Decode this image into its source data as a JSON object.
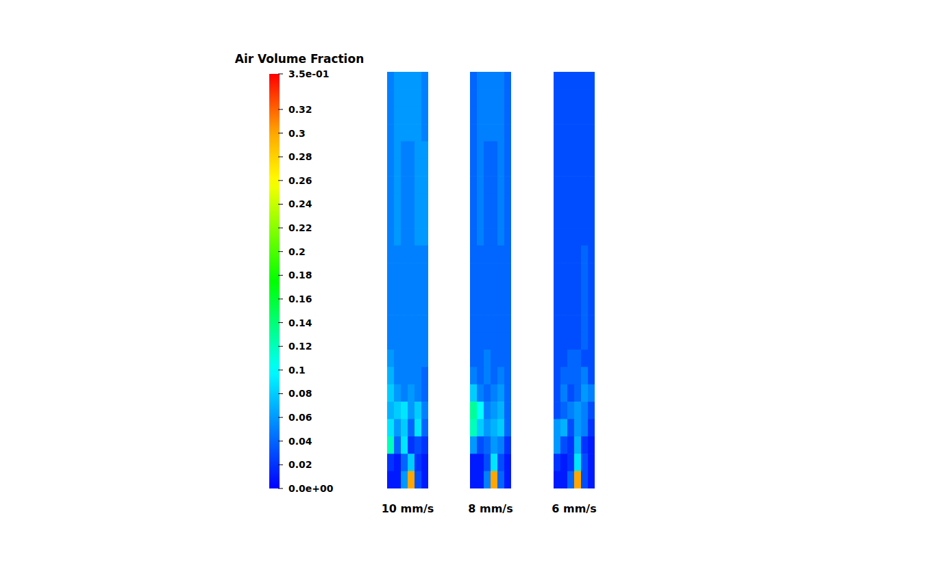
{
  "chart_data": {
    "type": "heatmap",
    "title": "Air Volume Fraction",
    "color_range": [
      0,
      0.35
    ],
    "color_ticks": [
      {
        "value": 0,
        "label": "0.0e+00"
      },
      0.02,
      0.04,
      0.06,
      0.08,
      0.1,
      0.12,
      0.14,
      0.16,
      0.18,
      0.2,
      0.22,
      0.24,
      0.26,
      0.28,
      0.3,
      0.32,
      {
        "value": 0.35,
        "label": "3.5e-01"
      }
    ],
    "tick_labels": false,
    "panels": [
      {
        "label": "10 mm/s",
        "cells": [
          [
            0.05,
            0.06,
            0.06,
            0.06,
            0.06,
            0.05
          ],
          [
            0.05,
            0.06,
            0.06,
            0.06,
            0.06,
            0.05
          ],
          [
            0.05,
            0.06,
            0.06,
            0.06,
            0.06,
            0.05
          ],
          [
            0.05,
            0.06,
            0.06,
            0.06,
            0.06,
            0.05
          ],
          [
            0.05,
            0.06,
            0.05,
            0.05,
            0.06,
            0.06
          ],
          [
            0.05,
            0.06,
            0.05,
            0.05,
            0.06,
            0.06
          ],
          [
            0.05,
            0.06,
            0.05,
            0.05,
            0.06,
            0.06
          ],
          [
            0.05,
            0.06,
            0.05,
            0.05,
            0.06,
            0.06
          ],
          [
            0.05,
            0.06,
            0.05,
            0.05,
            0.06,
            0.06
          ],
          [
            0.05,
            0.06,
            0.05,
            0.05,
            0.06,
            0.06
          ],
          [
            0.05,
            0.05,
            0.05,
            0.05,
            0.05,
            0.05
          ],
          [
            0.05,
            0.05,
            0.05,
            0.05,
            0.05,
            0.05
          ],
          [
            0.05,
            0.05,
            0.05,
            0.05,
            0.05,
            0.05
          ],
          [
            0.05,
            0.05,
            0.05,
            0.05,
            0.05,
            0.05
          ],
          [
            0.05,
            0.05,
            0.05,
            0.05,
            0.05,
            0.05
          ],
          [
            0.05,
            0.05,
            0.05,
            0.05,
            0.05,
            0.05
          ],
          [
            0.06,
            0.05,
            0.05,
            0.05,
            0.05,
            0.05
          ],
          [
            0.07,
            0.05,
            0.05,
            0.05,
            0.05,
            0.04
          ],
          [
            0.08,
            0.06,
            0.05,
            0.06,
            0.05,
            0.04
          ],
          [
            0.07,
            0.08,
            0.09,
            0.06,
            0.08,
            0.05
          ],
          [
            0.09,
            0.06,
            0.08,
            0.04,
            0.09,
            0.04
          ],
          [
            0.12,
            0.04,
            0.09,
            0.02,
            0.03,
            0.02
          ],
          [
            0.02,
            0.01,
            0.04,
            0.08,
            0.02,
            0.01
          ],
          [
            0.01,
            0.01,
            0.06,
            0.3,
            0.03,
            0.01
          ]
        ]
      },
      {
        "label": "8 mm/s",
        "cells": [
          [
            0.04,
            0.05,
            0.05,
            0.05,
            0.05,
            0.04
          ],
          [
            0.04,
            0.05,
            0.05,
            0.05,
            0.05,
            0.04
          ],
          [
            0.04,
            0.05,
            0.05,
            0.05,
            0.05,
            0.04
          ],
          [
            0.04,
            0.05,
            0.05,
            0.05,
            0.05,
            0.04
          ],
          [
            0.04,
            0.05,
            0.04,
            0.04,
            0.05,
            0.04
          ],
          [
            0.04,
            0.05,
            0.04,
            0.04,
            0.05,
            0.04
          ],
          [
            0.04,
            0.05,
            0.04,
            0.04,
            0.05,
            0.04
          ],
          [
            0.04,
            0.05,
            0.04,
            0.04,
            0.05,
            0.04
          ],
          [
            0.04,
            0.05,
            0.04,
            0.04,
            0.05,
            0.04
          ],
          [
            0.04,
            0.05,
            0.04,
            0.04,
            0.05,
            0.04
          ],
          [
            0.04,
            0.04,
            0.04,
            0.04,
            0.04,
            0.04
          ],
          [
            0.04,
            0.04,
            0.04,
            0.04,
            0.04,
            0.04
          ],
          [
            0.04,
            0.04,
            0.04,
            0.04,
            0.04,
            0.04
          ],
          [
            0.04,
            0.04,
            0.04,
            0.04,
            0.04,
            0.04
          ],
          [
            0.04,
            0.04,
            0.04,
            0.04,
            0.04,
            0.04
          ],
          [
            0.04,
            0.04,
            0.04,
            0.04,
            0.04,
            0.04
          ],
          [
            0.04,
            0.04,
            0.05,
            0.04,
            0.04,
            0.04
          ],
          [
            0.05,
            0.04,
            0.05,
            0.04,
            0.05,
            0.04
          ],
          [
            0.08,
            0.05,
            0.04,
            0.05,
            0.06,
            0.04
          ],
          [
            0.13,
            0.1,
            0.05,
            0.06,
            0.07,
            0.04
          ],
          [
            0.12,
            0.08,
            0.06,
            0.07,
            0.08,
            0.04
          ],
          [
            0.06,
            0.03,
            0.04,
            0.06,
            0.05,
            0.02
          ],
          [
            0.01,
            0.01,
            0.03,
            0.09,
            0.03,
            0.01
          ],
          [
            0.01,
            0.01,
            0.05,
            0.3,
            0.04,
            0.01
          ]
        ]
      },
      {
        "label": "6 mm/s",
        "cells": [
          [
            0.03,
            0.03,
            0.03,
            0.03,
            0.03,
            0.03
          ],
          [
            0.03,
            0.03,
            0.03,
            0.03,
            0.03,
            0.03
          ],
          [
            0.03,
            0.03,
            0.03,
            0.03,
            0.03,
            0.03
          ],
          [
            0.03,
            0.03,
            0.03,
            0.03,
            0.03,
            0.03
          ],
          [
            0.03,
            0.03,
            0.03,
            0.03,
            0.03,
            0.03
          ],
          [
            0.03,
            0.03,
            0.03,
            0.03,
            0.03,
            0.03
          ],
          [
            0.03,
            0.03,
            0.03,
            0.03,
            0.03,
            0.03
          ],
          [
            0.03,
            0.03,
            0.03,
            0.03,
            0.03,
            0.03
          ],
          [
            0.03,
            0.03,
            0.03,
            0.03,
            0.03,
            0.03
          ],
          [
            0.03,
            0.03,
            0.03,
            0.03,
            0.03,
            0.03
          ],
          [
            0.03,
            0.03,
            0.03,
            0.03,
            0.04,
            0.03
          ],
          [
            0.03,
            0.03,
            0.03,
            0.03,
            0.04,
            0.03
          ],
          [
            0.03,
            0.03,
            0.03,
            0.03,
            0.04,
            0.03
          ],
          [
            0.03,
            0.03,
            0.03,
            0.03,
            0.04,
            0.03
          ],
          [
            0.03,
            0.03,
            0.03,
            0.03,
            0.04,
            0.03
          ],
          [
            0.03,
            0.03,
            0.03,
            0.03,
            0.04,
            0.03
          ],
          [
            0.03,
            0.03,
            0.04,
            0.04,
            0.03,
            0.03
          ],
          [
            0.03,
            0.04,
            0.04,
            0.04,
            0.05,
            0.03
          ],
          [
            0.03,
            0.05,
            0.03,
            0.04,
            0.06,
            0.05
          ],
          [
            0.03,
            0.04,
            0.05,
            0.06,
            0.05,
            0.03
          ],
          [
            0.06,
            0.07,
            0.03,
            0.06,
            0.05,
            0.02
          ],
          [
            0.06,
            0.03,
            0.02,
            0.07,
            0.02,
            0.01
          ],
          [
            0.02,
            0.01,
            0.02,
            0.09,
            0.03,
            0.01
          ],
          [
            0.01,
            0.01,
            0.04,
            0.3,
            0.03,
            0.01
          ]
        ]
      }
    ]
  }
}
